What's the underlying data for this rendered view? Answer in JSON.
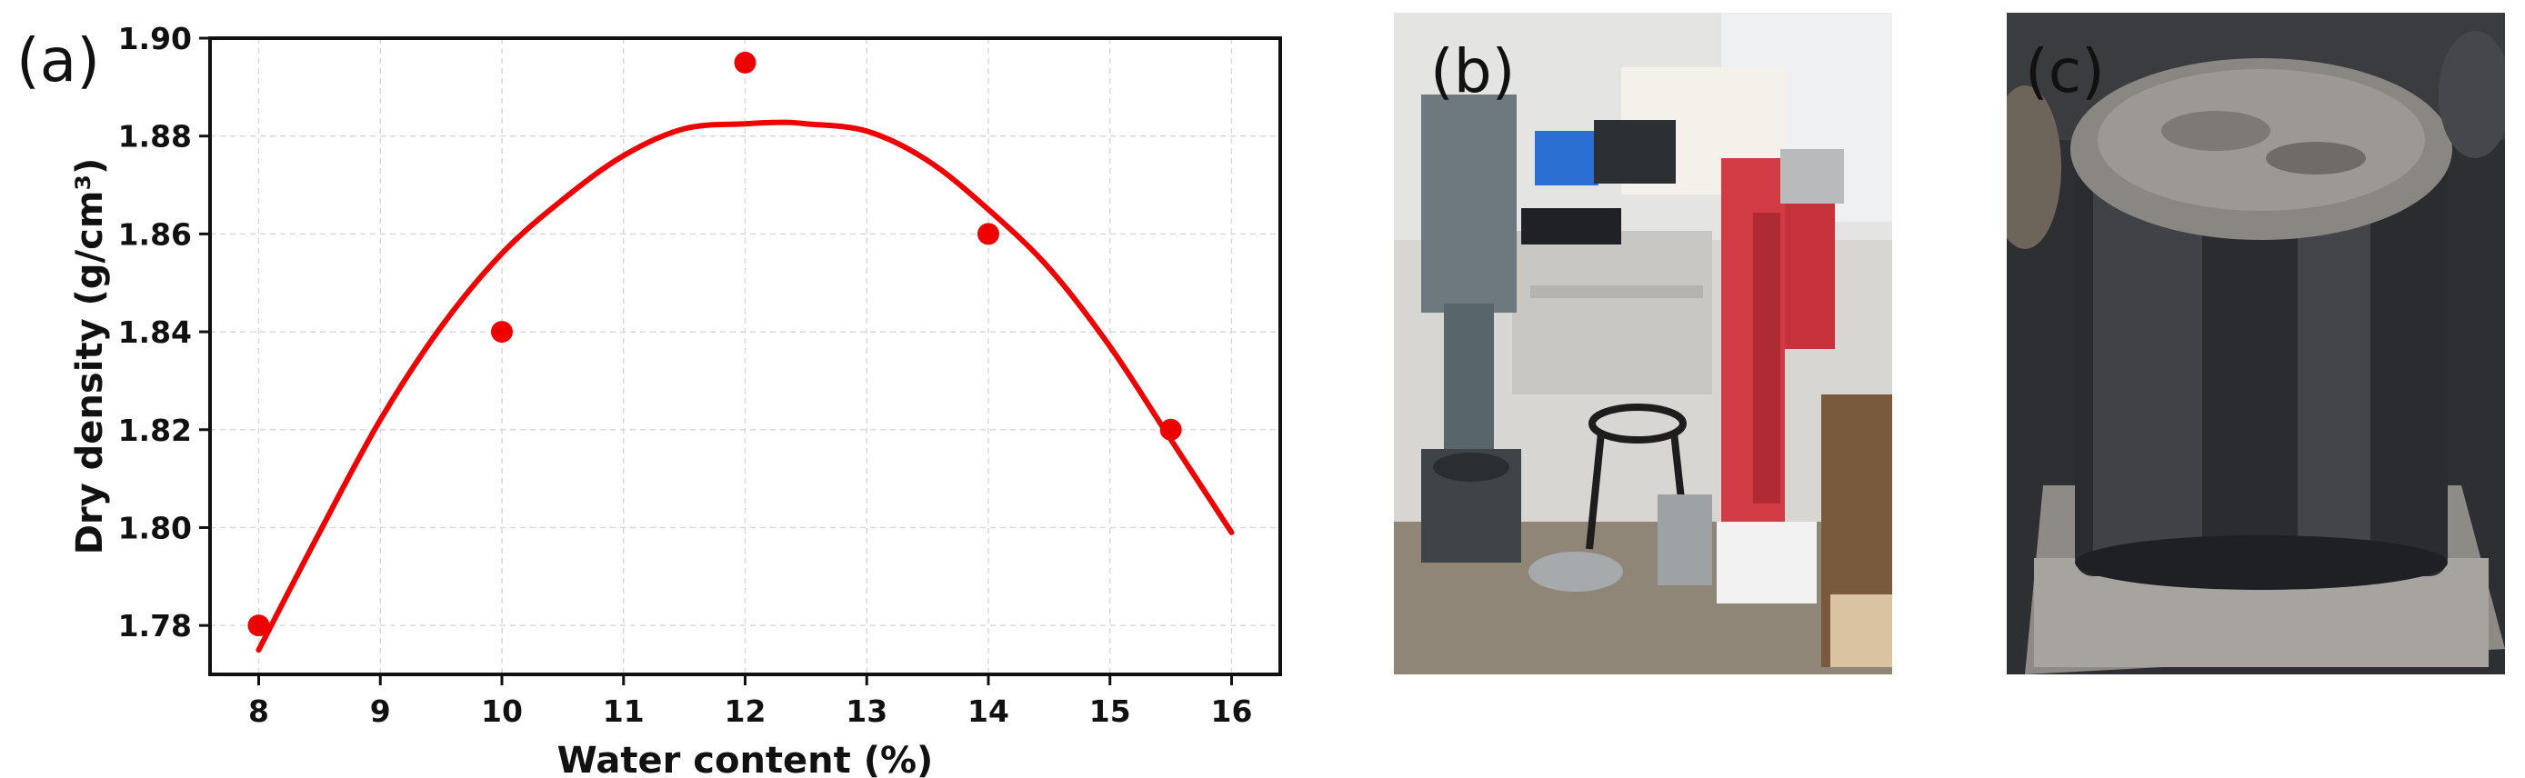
{
  "panels": {
    "a": "(a)",
    "b": "(b)",
    "c": "(c)"
  },
  "chart_data": {
    "type": "scatter",
    "title": "",
    "xlabel": "Water content (%)",
    "ylabel": "Dry density (g/cm³)",
    "xlim": [
      7.6,
      16.4
    ],
    "ylim": [
      1.77,
      1.9
    ],
    "xticks": [
      "8",
      "9",
      "10",
      "11",
      "12",
      "13",
      "14",
      "15",
      "16"
    ],
    "yticks": [
      "1.78",
      "1.80",
      "1.82",
      "1.84",
      "1.86",
      "1.88",
      "1.90"
    ],
    "grid": true,
    "series": [
      {
        "kind": "points",
        "color": "#ee0000",
        "x": [
          8,
          10,
          12,
          14,
          15.5
        ],
        "y": [
          1.78,
          1.84,
          1.895,
          1.86,
          1.82
        ]
      },
      {
        "kind": "fit-curve",
        "color": "#ee0000",
        "x": [
          8.0,
          8.5,
          9.0,
          9.5,
          10.0,
          10.5,
          11.0,
          11.5,
          12.0,
          12.3,
          12.5,
          13.0,
          13.5,
          14.0,
          14.5,
          15.0,
          15.5,
          16.0
        ],
        "y": [
          1.775,
          1.799,
          1.822,
          1.841,
          1.856,
          1.867,
          1.876,
          1.8815,
          1.8825,
          1.8828,
          1.8825,
          1.881,
          1.875,
          1.865,
          1.853,
          1.837,
          1.818,
          1.799
        ]
      }
    ]
  },
  "photos": {
    "b": {
      "icon": "compaction-test-apparatus-photo",
      "palette": [
        "#cfd2d4",
        "#6e7b80",
        "#c8323c",
        "#5a524a"
      ]
    },
    "c": {
      "icon": "compacted-soil-specimen-photo",
      "palette": [
        "#3a3b3e",
        "#8a8782",
        "#b9b9b9",
        "#1c1d20"
      ]
    }
  }
}
